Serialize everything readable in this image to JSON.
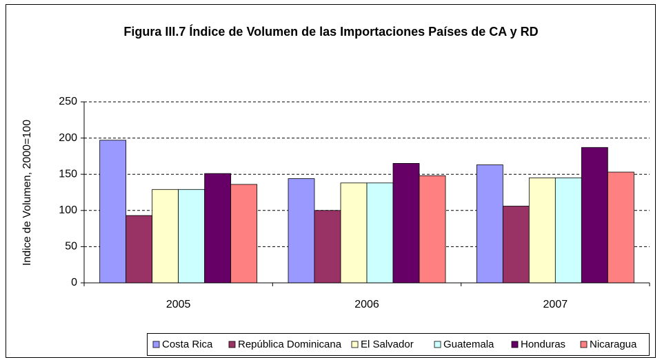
{
  "chart_data": {
    "type": "bar",
    "title": "Figura III.7 Índice de Volumen de las Importaciones Países de CA y RD",
    "y_label": "Indice de Volumen, 2000=100",
    "categories": [
      "2005",
      "2006",
      "2007"
    ],
    "series": [
      {
        "name": "Costa Rica",
        "color": "#9999ff",
        "values": [
          197,
          144,
          163
        ]
      },
      {
        "name": "República Dominicana",
        "color": "#993366",
        "values": [
          93,
          100,
          106
        ]
      },
      {
        "name": "El Salvador",
        "color": "#ffffcc",
        "values": [
          129,
          138,
          145
        ]
      },
      {
        "name": "Guatemala",
        "color": "#ccffff",
        "values": [
          129,
          138,
          145
        ]
      },
      {
        "name": "Honduras",
        "color": "#660066",
        "values": [
          151,
          165,
          187
        ]
      },
      {
        "name": "Nicaragua",
        "color": "#ff8080",
        "values": [
          136,
          148,
          153
        ]
      }
    ],
    "ylim": [
      0,
      250
    ],
    "yticks": [
      0,
      50,
      100,
      150,
      200,
      250
    ],
    "grid": true,
    "legend": "bottom"
  }
}
